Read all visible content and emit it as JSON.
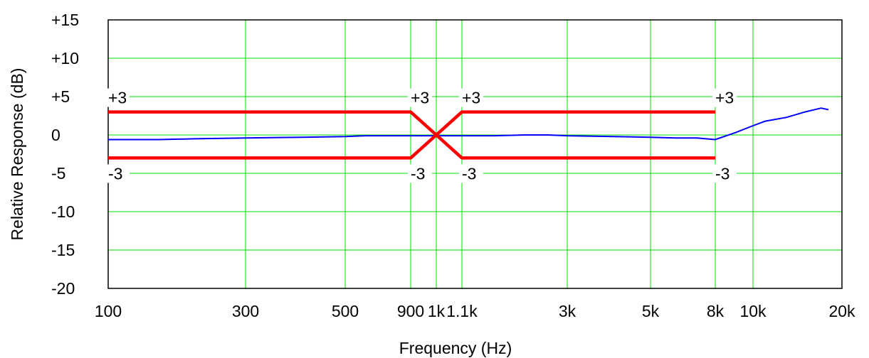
{
  "chart_data": {
    "type": "line",
    "title": "",
    "xlabel": "Frequency (Hz)",
    "ylabel": "Relative Response  (dB)",
    "xscale": "log",
    "xlim": [
      100,
      20000
    ],
    "ylim": [
      -20,
      15
    ],
    "grid": true,
    "x_ticks": [
      {
        "value": 100,
        "label": "100"
      },
      {
        "value": 300,
        "label": "300"
      },
      {
        "value": 500,
        "label": "500"
      },
      {
        "value": 900,
        "label": "900"
      },
      {
        "value": 1000,
        "label": "1k"
      },
      {
        "value": 1100,
        "label": "1.1k"
      },
      {
        "value": 3000,
        "label": "3k"
      },
      {
        "value": 5000,
        "label": "5k"
      },
      {
        "value": 8000,
        "label": "8k"
      },
      {
        "value": 10000,
        "label": "10k"
      },
      {
        "value": 20000,
        "label": "20k"
      }
    ],
    "y_ticks": [
      {
        "value": 15,
        "label": "+15"
      },
      {
        "value": 10,
        "label": "+10"
      },
      {
        "value": 5,
        "label": "+5"
      },
      {
        "value": 0,
        "label": "0"
      },
      {
        "value": -5,
        "label": "-5"
      },
      {
        "value": -10,
        "label": "-10"
      },
      {
        "value": -15,
        "label": "-15"
      },
      {
        "value": -20,
        "label": "-20"
      }
    ],
    "series": [
      {
        "color": "#0000ff",
        "x": [
          100,
          150,
          200,
          300,
          400,
          500,
          600,
          700,
          800,
          900,
          1000,
          1100,
          1300,
          1500,
          2000,
          2500,
          3000,
          4000,
          5000,
          6000,
          7000,
          8000,
          9000,
          10000,
          11000,
          13000,
          15000,
          17000,
          18000
        ],
        "y": [
          -0.6,
          -0.6,
          -0.5,
          -0.4,
          -0.3,
          -0.2,
          -0.1,
          -0.1,
          -0.1,
          -0.1,
          -0.1,
          -0.1,
          -0.1,
          -0.1,
          0,
          0,
          -0.1,
          -0.2,
          -0.3,
          -0.4,
          -0.4,
          -0.6,
          0.3,
          1.2,
          1.8,
          2.3,
          3,
          3.5,
          3.3
        ]
      },
      {
        "color": "#ff0000",
        "x": [
          100,
          900,
          1000,
          1100,
          8000
        ],
        "y": [
          3,
          3,
          0,
          3,
          3
        ]
      },
      {
        "color": "#ff0000",
        "x": [
          100,
          900,
          1000,
          1100,
          8000
        ],
        "y": [
          -3,
          -3,
          0,
          -3,
          -3
        ]
      }
    ],
    "annotations": [
      {
        "text": "+3",
        "x": 100,
        "y": 3
      },
      {
        "text": "+3",
        "x": 900,
        "y": 3
      },
      {
        "text": "+3",
        "x": 1100,
        "y": 3
      },
      {
        "text": "+3",
        "x": 8000,
        "y": 3
      },
      {
        "text": "-3",
        "x": 100,
        "y": -3
      },
      {
        "text": "-3",
        "x": 900,
        "y": -3
      },
      {
        "text": "-3",
        "x": 1100,
        "y": -3
      },
      {
        "text": "-3",
        "x": 8000,
        "y": -3
      }
    ],
    "colors": {
      "grid": "#00dd00",
      "frame": "#000000"
    }
  }
}
